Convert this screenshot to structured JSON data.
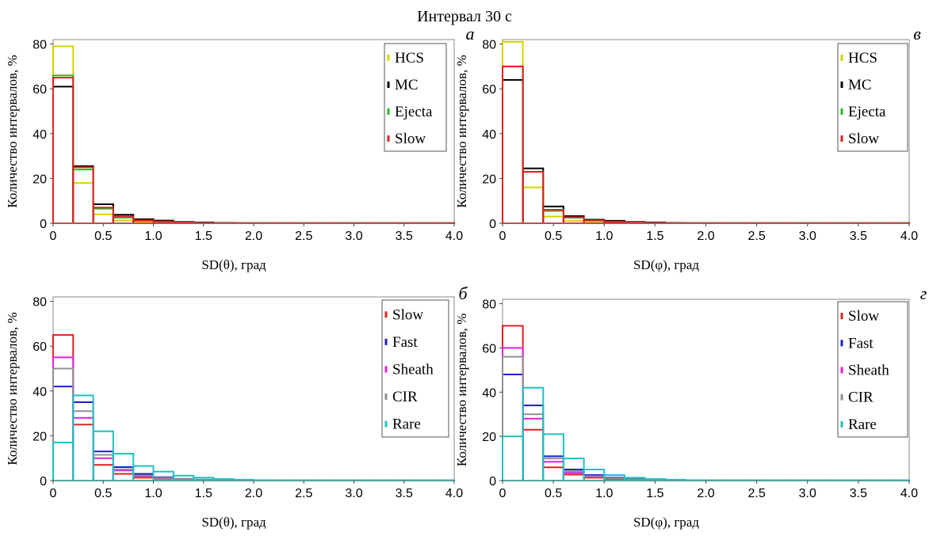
{
  "figure_title": "Интервал 30 с",
  "chart_data": [
    {
      "type": "bar",
      "panel_label": "а",
      "xlabel": "SD(θ), град",
      "ylabel": "Количество интервалов, %",
      "xlim": [
        0,
        4.0
      ],
      "ylim": [
        0,
        82
      ],
      "xticks": [
        "0",
        "0.5",
        "1.0",
        "1.5",
        "2.0",
        "2.5",
        "3.0",
        "3.5",
        "4.0"
      ],
      "yticks": [
        "0",
        "20",
        "40",
        "60",
        "80"
      ],
      "bin_width": 0.2,
      "bin_starts": [
        0.0,
        0.2,
        0.4,
        0.6,
        0.8,
        1.0,
        1.2,
        1.4,
        1.6,
        1.8,
        2.0,
        2.2,
        2.4,
        2.6,
        2.8,
        3.0,
        3.2,
        3.4,
        3.6,
        3.8
      ],
      "legend_position": "top-right",
      "series": [
        {
          "name": "HCS",
          "color": "#d4d400",
          "values": [
            79,
            18,
            4,
            1.2,
            0.5,
            0.3,
            0.2,
            0.1,
            0.1,
            0.1,
            0.1,
            0.1,
            0.1,
            0.1,
            0.1,
            0.1,
            0.1,
            0.1,
            0.1,
            0.1
          ]
        },
        {
          "name": "MC",
          "color": "#000000",
          "values": [
            61,
            25.5,
            8.5,
            3.8,
            1.8,
            1.2,
            0.6,
            0.4,
            0.2,
            0.1,
            0.1,
            0.1,
            0.1,
            0.1,
            0.1,
            0.1,
            0.1,
            0.1,
            0.1,
            0.1
          ]
        },
        {
          "name": "Ejecta",
          "color": "#22c022",
          "values": [
            66,
            24,
            6.5,
            2.5,
            1.1,
            0.6,
            0.3,
            0.2,
            0.1,
            0.1,
            0.1,
            0.1,
            0.1,
            0.1,
            0.1,
            0.1,
            0.1,
            0.1,
            0.1,
            0.1
          ]
        },
        {
          "name": "Slow",
          "color": "#e02020",
          "values": [
            65,
            25,
            7,
            3,
            1.3,
            0.8,
            0.4,
            0.2,
            0.1,
            0.1,
            0.1,
            0.1,
            0.1,
            0.1,
            0.1,
            0.1,
            0.1,
            0.1,
            0.1,
            0.1
          ]
        }
      ]
    },
    {
      "type": "bar",
      "panel_label": "в",
      "xlabel": "SD(φ), град",
      "ylabel": "Количество интервалов, %",
      "xlim": [
        0,
        4.0
      ],
      "ylim": [
        0,
        82
      ],
      "xticks": [
        "0",
        "0.5",
        "1.0",
        "1.5",
        "2.0",
        "2.5",
        "3.0",
        "3.5",
        "4.0"
      ],
      "yticks": [
        "0",
        "20",
        "40",
        "60",
        "80"
      ],
      "bin_width": 0.2,
      "bin_starts": [
        0.0,
        0.2,
        0.4,
        0.6,
        0.8,
        1.0,
        1.2,
        1.4,
        1.6,
        1.8,
        2.0,
        2.2,
        2.4,
        2.6,
        2.8,
        3.0,
        3.2,
        3.4,
        3.6,
        3.8
      ],
      "legend_position": "top-right",
      "series": [
        {
          "name": "HCS",
          "color": "#d4d400",
          "values": [
            81,
            16,
            3,
            1,
            0.4,
            0.3,
            0.2,
            0.1,
            0.1,
            0.1,
            0.1,
            0.1,
            0.1,
            0.1,
            0.1,
            0.1,
            0.1,
            0.1,
            0.1,
            0.1
          ]
        },
        {
          "name": "MC",
          "color": "#000000",
          "values": [
            64,
            24.5,
            7.5,
            3.2,
            1.6,
            1.1,
            0.6,
            0.4,
            0.2,
            0.1,
            0.1,
            0.1,
            0.1,
            0.1,
            0.1,
            0.1,
            0.1,
            0.1,
            0.1,
            0.1
          ]
        },
        {
          "name": "Ejecta",
          "color": "#22c022",
          "values": [
            70,
            23,
            5.5,
            2.5,
            1.2,
            0.6,
            0.3,
            0.2,
            0.1,
            0.1,
            0.1,
            0.1,
            0.1,
            0.1,
            0.1,
            0.1,
            0.1,
            0.1,
            0.1,
            0.1
          ]
        },
        {
          "name": "Slow",
          "color": "#e02020",
          "values": [
            70,
            23,
            6,
            2.7,
            1.3,
            0.7,
            0.4,
            0.2,
            0.1,
            0.1,
            0.1,
            0.1,
            0.1,
            0.1,
            0.1,
            0.1,
            0.1,
            0.1,
            0.1,
            0.1
          ]
        }
      ]
    },
    {
      "type": "bar",
      "panel_label": "б",
      "xlabel": "SD(θ), град",
      "ylabel": "Количество интервалов, %",
      "xlim": [
        0,
        4.0
      ],
      "ylim": [
        0,
        82
      ],
      "xticks": [
        "0",
        "0.5",
        "1.0",
        "1.5",
        "2.0",
        "2.5",
        "3.0",
        "3.5",
        "4.0"
      ],
      "yticks": [
        "0",
        "20",
        "40",
        "60",
        "80"
      ],
      "bin_width": 0.2,
      "bin_starts": [
        0.0,
        0.2,
        0.4,
        0.6,
        0.8,
        1.0,
        1.2,
        1.4,
        1.6,
        1.8,
        2.0,
        2.2,
        2.4,
        2.6,
        2.8,
        3.0,
        3.2,
        3.4,
        3.6,
        3.8
      ],
      "legend_position": "top-right",
      "series": [
        {
          "name": "Slow",
          "color": "#e02020",
          "values": [
            65,
            25,
            7,
            3,
            1.3,
            0.8,
            0.4,
            0.2,
            0.1,
            0.1,
            0.1,
            0.1,
            0.1,
            0.1,
            0.1,
            0.1,
            0.1,
            0.1,
            0.1,
            0.1
          ]
        },
        {
          "name": "Fast",
          "color": "#1c1cd0",
          "values": [
            42,
            35,
            13,
            6,
            3,
            1.5,
            0.7,
            0.4,
            0.2,
            0.1,
            0.1,
            0.1,
            0.1,
            0.1,
            0.1,
            0.1,
            0.1,
            0.1,
            0.1,
            0.1
          ]
        },
        {
          "name": "Sheath",
          "color": "#e020e0",
          "values": [
            55,
            28,
            10,
            4.5,
            2,
            1,
            0.5,
            0.3,
            0.2,
            0.1,
            0.1,
            0.1,
            0.1,
            0.1,
            0.1,
            0.1,
            0.1,
            0.1,
            0.1,
            0.1
          ]
        },
        {
          "name": "CIR",
          "color": "#909090",
          "values": [
            50,
            31,
            11.5,
            5,
            2.3,
            1.2,
            0.6,
            0.3,
            0.2,
            0.1,
            0.1,
            0.1,
            0.1,
            0.1,
            0.1,
            0.1,
            0.1,
            0.1,
            0.1,
            0.1
          ]
        },
        {
          "name": "Rare",
          "color": "#20c0c0",
          "values": [
            17,
            38,
            22,
            12,
            6.5,
            4,
            2.2,
            1.3,
            0.7,
            0.4,
            0.2,
            0.1,
            0.1,
            0.1,
            0.1,
            0.1,
            0.1,
            0.1,
            0.1,
            0.1
          ]
        }
      ]
    },
    {
      "type": "bar",
      "panel_label": "г",
      "xlabel": "SD(φ), град",
      "ylabel": "Количество интервалов, %",
      "xlim": [
        0,
        4.0
      ],
      "ylim": [
        0,
        82
      ],
      "xticks": [
        "0",
        "0.5",
        "1.0",
        "1.5",
        "2.0",
        "2.5",
        "3.0",
        "3.5",
        "4.0"
      ],
      "yticks": [
        "0",
        "20",
        "40",
        "60",
        "80"
      ],
      "bin_width": 0.2,
      "bin_starts": [
        0.0,
        0.2,
        0.4,
        0.6,
        0.8,
        1.0,
        1.2,
        1.4,
        1.6,
        1.8,
        2.0,
        2.2,
        2.4,
        2.6,
        2.8,
        3.0,
        3.2,
        3.4,
        3.6,
        3.8
      ],
      "legend_position": "top-right",
      "series": [
        {
          "name": "Slow",
          "color": "#e02020",
          "values": [
            70,
            23,
            6,
            2.7,
            1.3,
            0.7,
            0.4,
            0.2,
            0.1,
            0.1,
            0.1,
            0.1,
            0.1,
            0.1,
            0.1,
            0.1,
            0.1,
            0.1,
            0.1,
            0.1
          ]
        },
        {
          "name": "Fast",
          "color": "#1c1cd0",
          "values": [
            48,
            34,
            11,
            5,
            2.5,
            1.3,
            0.7,
            0.4,
            0.2,
            0.1,
            0.1,
            0.1,
            0.1,
            0.1,
            0.1,
            0.1,
            0.1,
            0.1,
            0.1,
            0.1
          ]
        },
        {
          "name": "Sheath",
          "color": "#e020e0",
          "values": [
            60,
            28,
            8.5,
            3.5,
            1.6,
            0.8,
            0.4,
            0.2,
            0.1,
            0.1,
            0.1,
            0.1,
            0.1,
            0.1,
            0.1,
            0.1,
            0.1,
            0.1,
            0.1,
            0.1
          ]
        },
        {
          "name": "CIR",
          "color": "#909090",
          "values": [
            56,
            30,
            10,
            4.2,
            2,
            1,
            0.5,
            0.3,
            0.2,
            0.1,
            0.1,
            0.1,
            0.1,
            0.1,
            0.1,
            0.1,
            0.1,
            0.1,
            0.1,
            0.1
          ]
        },
        {
          "name": "Rare",
          "color": "#20c0c0",
          "values": [
            20,
            42,
            21,
            10,
            5,
            2.5,
            1.3,
            0.7,
            0.4,
            0.2,
            0.1,
            0.1,
            0.1,
            0.1,
            0.1,
            0.1,
            0.1,
            0.1,
            0.1,
            0.1
          ]
        }
      ]
    }
  ]
}
